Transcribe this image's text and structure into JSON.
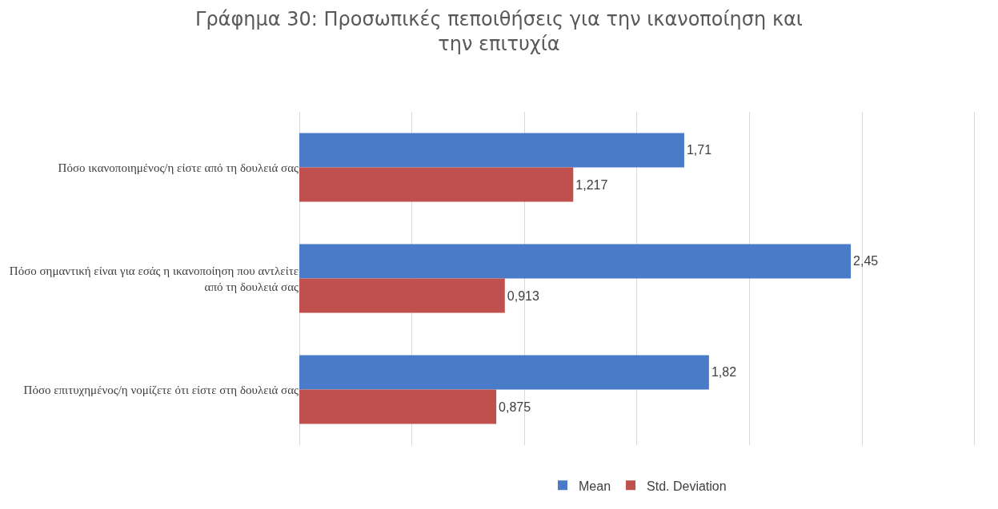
{
  "chart_data": {
    "type": "bar",
    "orientation": "horizontal",
    "title": "Γράφημα 30: Προσωπικές πεποιθήσεις για την ικανοποίηση και την επιτυχία",
    "categories": [
      "Πόσο ικανοποιημένος/η είστε από τη δουλειά σας",
      "Πόσο σημαντική είναι για εσάς η ικανοποίηση που αντλείτε από τη δουλειά σας",
      "Πόσο επιτυχημένος/η νομίζετε ότι είστε στη δουλειά σας"
    ],
    "series": [
      {
        "name": "Mean",
        "color": "#4a7bc8",
        "values": [
          1.71,
          2.45,
          1.82
        ],
        "value_labels": [
          "1,71",
          "2,45",
          "1,82"
        ]
      },
      {
        "name": "Std. Deviation",
        "color": "#c0504d",
        "values": [
          1.217,
          0.913,
          0.875
        ],
        "value_labels": [
          "1,217",
          "0,913",
          "0,875"
        ]
      }
    ],
    "xticks": [
      {
        "value": 0,
        "label": null
      },
      {
        "value": 0.5,
        "label": null
      },
      {
        "value": 1,
        "label": null
      },
      {
        "value": 1.5,
        "label": null
      },
      {
        "value": 2,
        "label": null
      },
      {
        "value": 2.5,
        "label": null
      },
      {
        "value": 3,
        "label": null
      }
    ],
    "tick_labels": "y",
    "grid": "x",
    "legend": "bottom"
  }
}
